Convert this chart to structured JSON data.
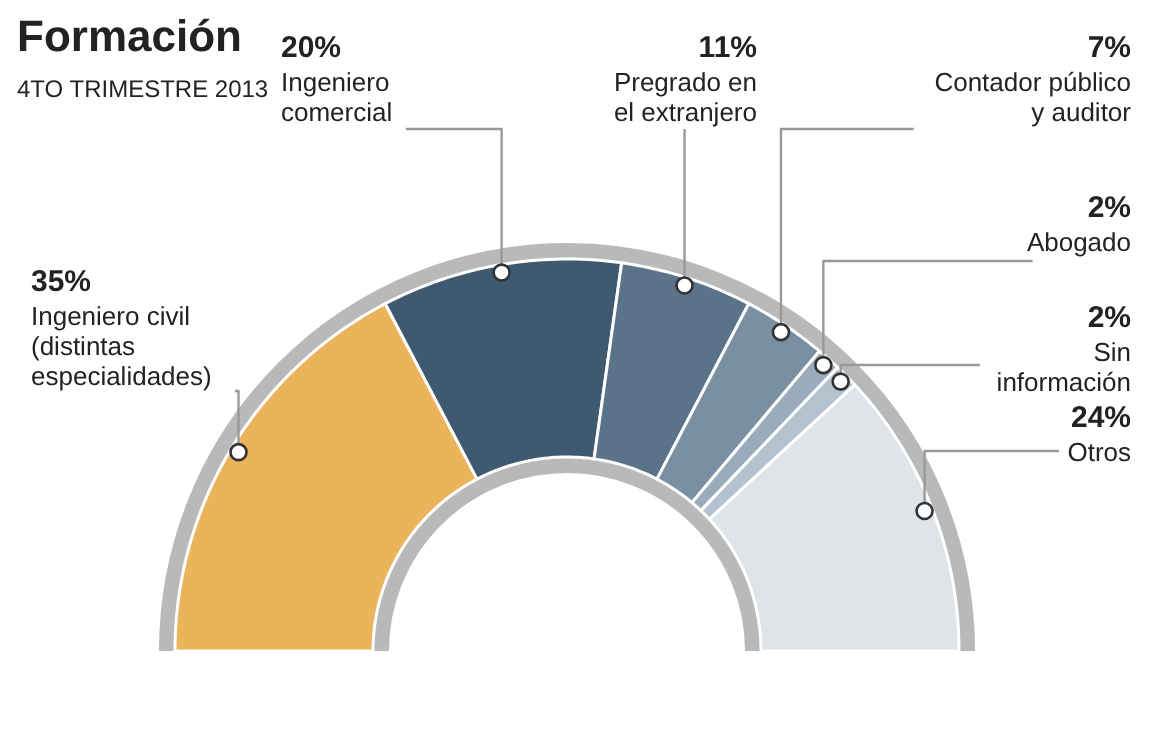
{
  "chart_data": {
    "type": "donut",
    "title": "Formación",
    "subtitle": "4TO TRIMESTRE 2013",
    "categories": [
      "Ingeniero civil\n(distintas\nespecialidades)",
      "Ingeniero\ncomercial",
      "Pregrado en\nel extranjero",
      "Contador público\ny auditor",
      "Abogado",
      "Sin\ninformación",
      "Otros"
    ],
    "values": [
      35,
      20,
      11,
      7,
      2,
      2,
      24
    ],
    "value_labels": [
      "35%",
      "20%",
      "11%",
      "7%",
      "2%",
      "2%",
      "24%"
    ],
    "colors": [
      "#ebb35a",
      "#3f5a70",
      "#5a7389",
      "#7a8fa2",
      "#9aabbb",
      "#b4c2cf",
      "#dfe4e9"
    ]
  }
}
